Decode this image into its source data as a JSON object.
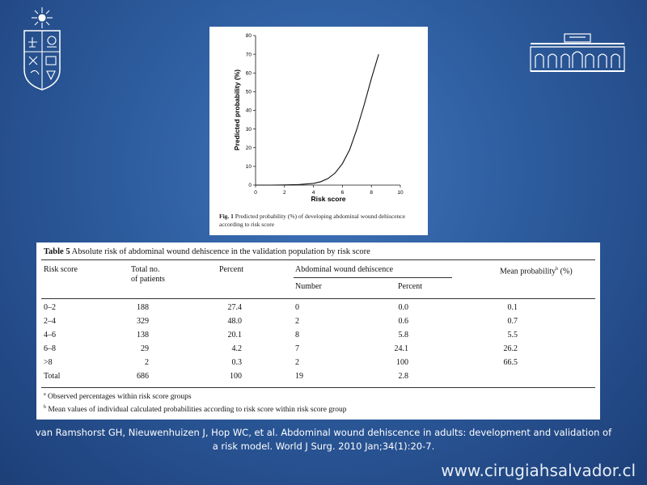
{
  "figure": {
    "caption_label": "Fig. 1",
    "caption_text": "Predicted probability (%) of developing abdominal wound dehiscence according to risk score"
  },
  "chart_data": {
    "type": "line",
    "xlabel": "Risk score",
    "ylabel": "Predicted probability (%)",
    "xlim": [
      0,
      10
    ],
    "ylim": [
      0,
      80
    ],
    "xticks": [
      "0",
      "2",
      "4",
      "6",
      "8",
      "10"
    ],
    "yticks": [
      "0",
      "10",
      "20",
      "30",
      "40",
      "50",
      "60",
      "70",
      "80"
    ],
    "x": [
      0,
      1,
      2,
      3,
      4,
      4.5,
      5,
      5.5,
      6,
      6.5,
      7,
      7.5,
      8,
      8.5
    ],
    "y": [
      0,
      0,
      0.1,
      0.3,
      0.9,
      1.8,
      3.5,
      6.5,
      11.5,
      19,
      30,
      43,
      57,
      70
    ]
  },
  "table": {
    "title_label": "Table 5",
    "title_text": "Absolute risk of abdominal wound dehiscence in the validation population by risk score",
    "headers": {
      "risk_score": "Risk score",
      "total_line1": "Total no.",
      "total_line2": "of patients",
      "percent": "Percent",
      "group": "Abdominal wound dehiscence",
      "number": "Number",
      "percent2": "Percent",
      "mean_prob": "Mean probability",
      "mean_prob_sup": "b",
      "mean_prob_unit": "(%)"
    },
    "rows": [
      {
        "risk": "0–2",
        "total": "188",
        "pct": "27.4",
        "num": "0",
        "pct2": "0.0",
        "mean": "0.1"
      },
      {
        "risk": "2–4",
        "total": "329",
        "pct": "48.0",
        "num": "2",
        "pct2": "0.6",
        "mean": "0.7"
      },
      {
        "risk": "4–6",
        "total": "138",
        "pct": "20.1",
        "num": "8",
        "pct2": "5.8",
        "mean": "5.5"
      },
      {
        "risk": "6–8",
        "total": "29",
        "pct": "4.2",
        "num": "7",
        "pct2": "24.1",
        "mean": "26.2"
      },
      {
        "risk": ">8",
        "total": "2",
        "pct": "0.3",
        "num": "2",
        "pct2": "100",
        "mean": "66.5"
      },
      {
        "risk": "Total",
        "total": "686",
        "pct": "100",
        "num": "19",
        "pct2": "2.8",
        "mean": ""
      }
    ],
    "footnote_a_mark": "a",
    "footnote_a": "Observed percentages within risk score groups",
    "footnote_b_mark": "b",
    "footnote_b": "Mean values of individual calculated probabilities according to risk score within risk score group"
  },
  "citation": {
    "line1": "van Ramshorst GH, Nieuwenhuizen J, Hop WC, et al. Abdominal wound dehiscence in adults: development and validation of",
    "line2": "a risk model. World J Surg. 2010 Jan;34(1):20-7."
  },
  "website": "www.cirugiahsalvador.cl",
  "colors": {
    "background": "#2d5c9e",
    "text": "#ffffff"
  }
}
